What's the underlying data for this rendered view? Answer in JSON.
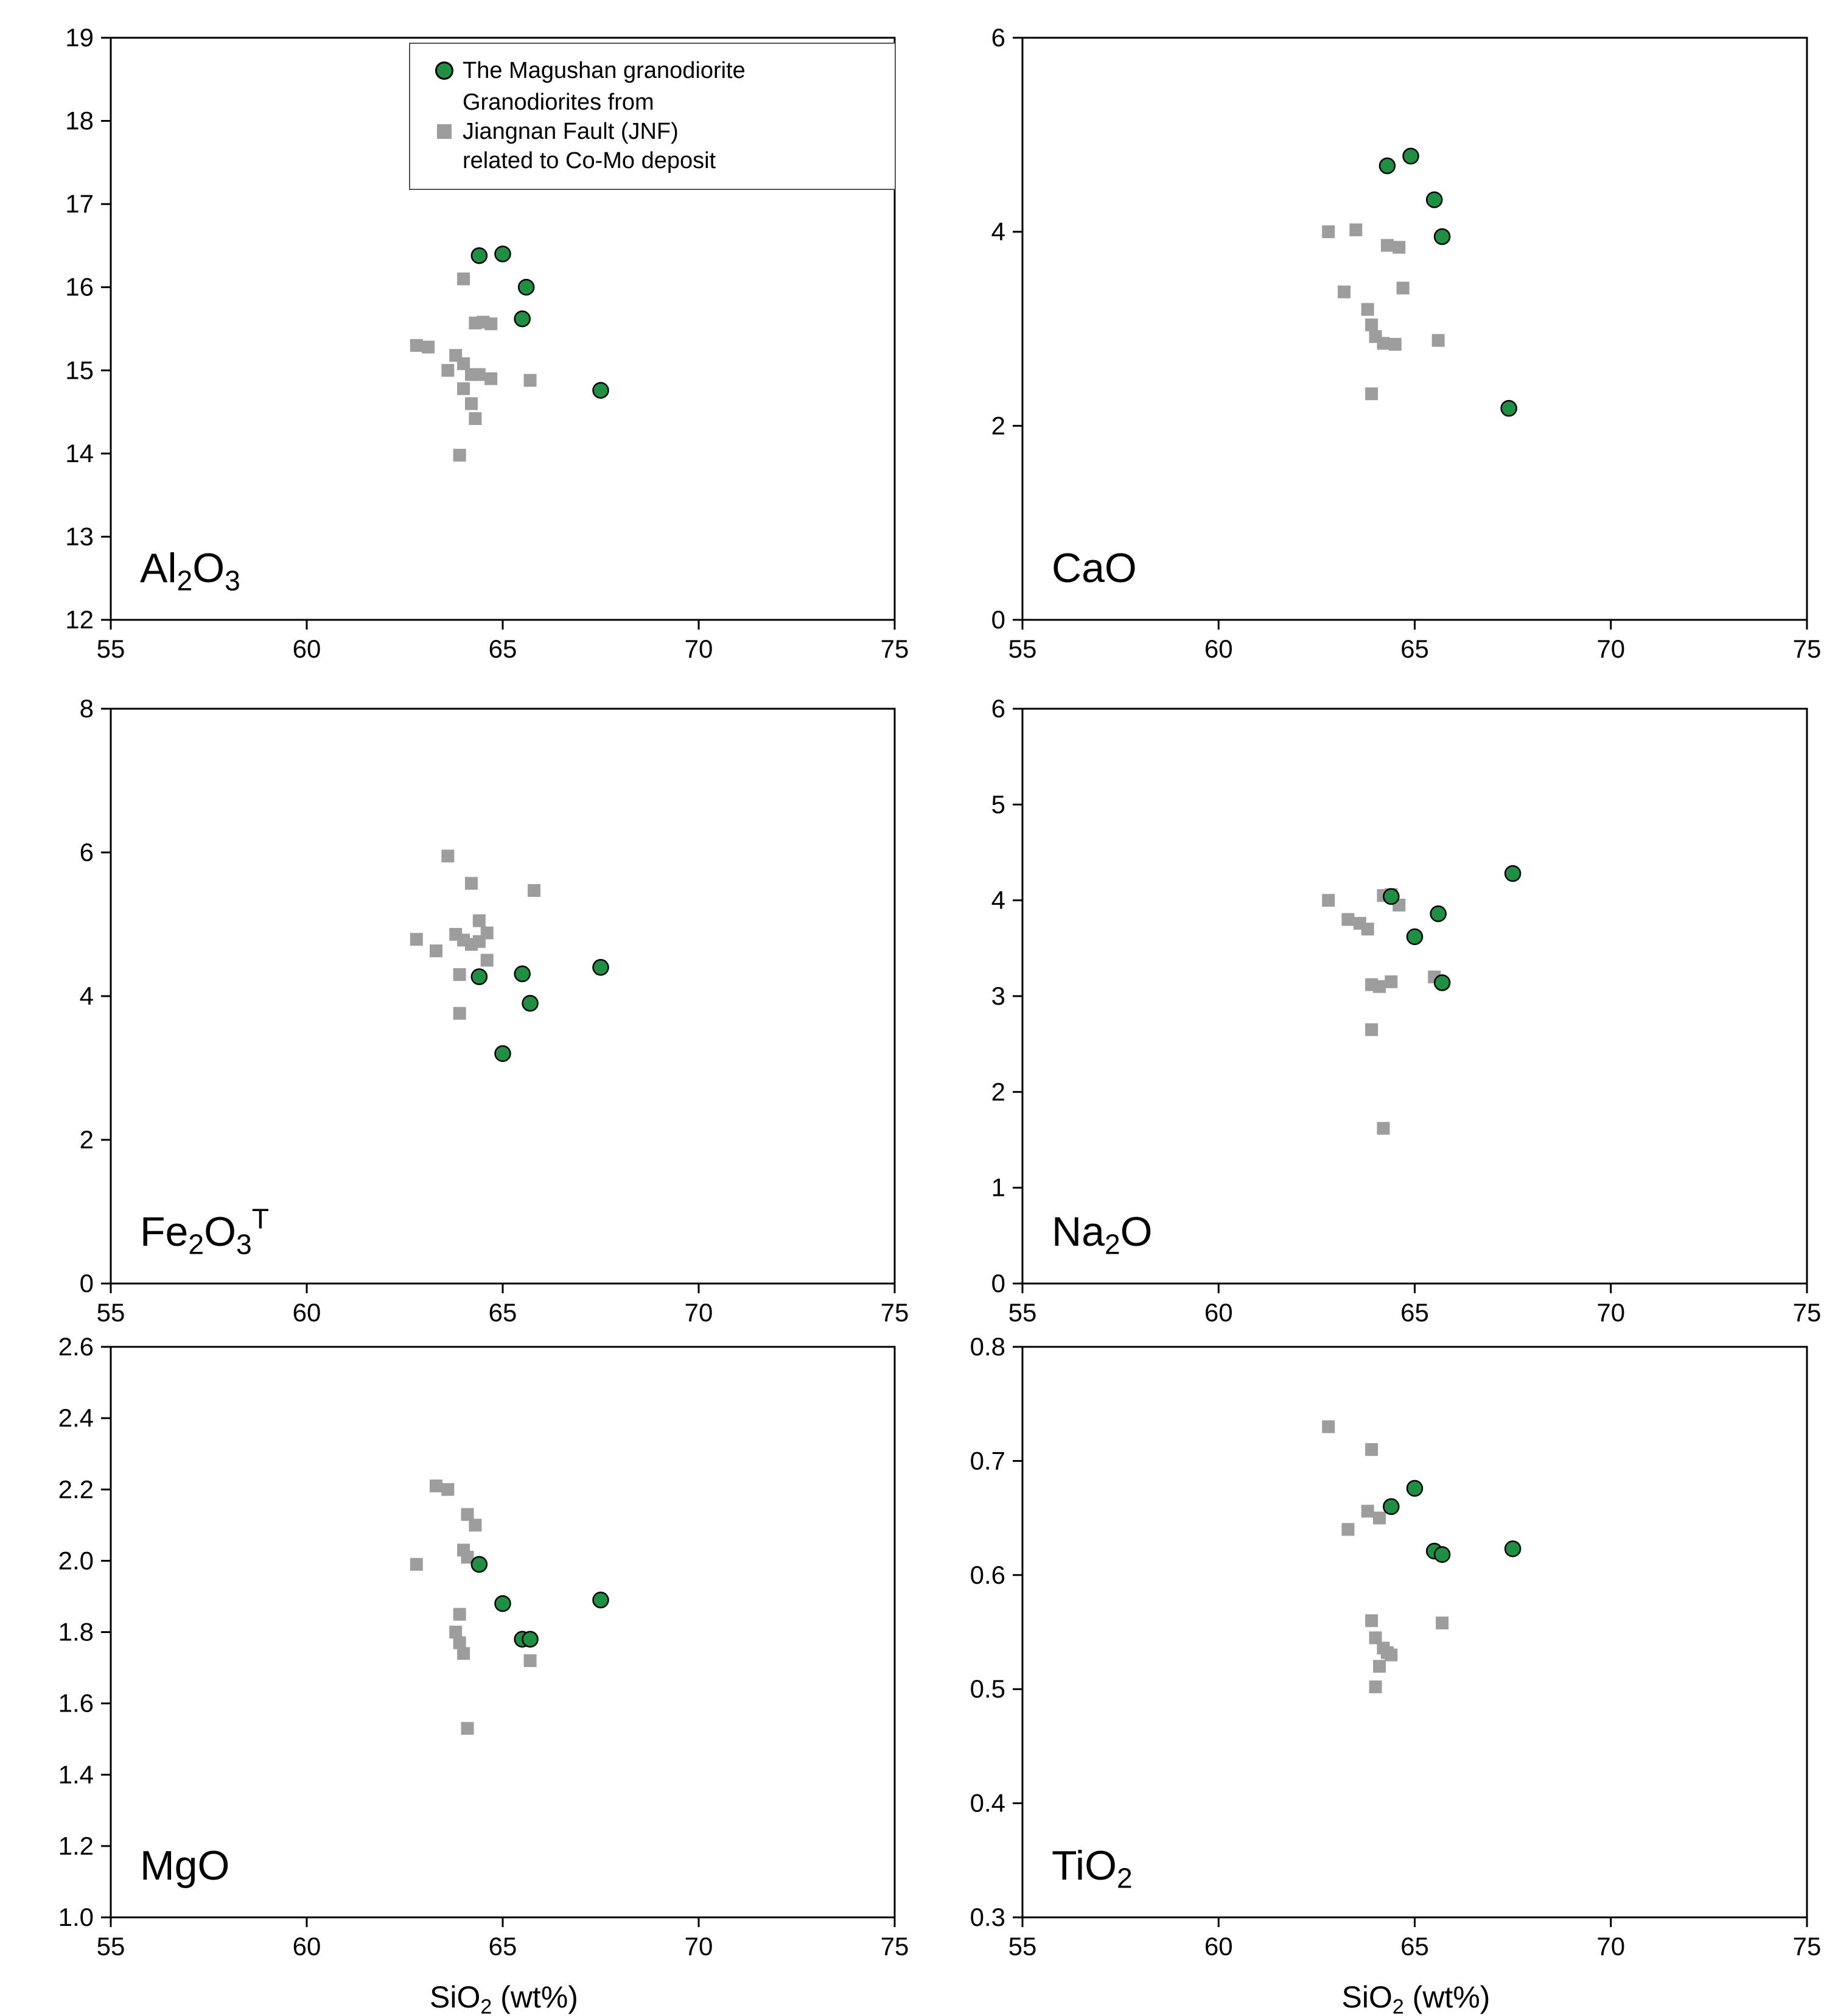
{
  "figure": {
    "xlabel_parts": [
      {
        "t": "SiO"
      },
      {
        "t": "2",
        "sub": true
      },
      {
        "t": " (wt%)"
      }
    ]
  },
  "colors": {
    "green": "#1e8f43",
    "gray": "#9d9d9d",
    "axis": "#000000"
  },
  "legend": {
    "items": [
      {
        "label": "The Magushan granodiorite",
        "marker": "circle",
        "color_key": "green"
      },
      {
        "label_lines": [
          "Granodiorites from",
          "Jiangnan Fault (JNF)",
          "related to Co-Mo deposit"
        ],
        "marker": "square",
        "color_key": "gray"
      }
    ]
  },
  "chart_data": [
    {
      "id": "al2o3",
      "type": "scatter",
      "label_parts": [
        {
          "t": "Al"
        },
        {
          "t": "2",
          "sub": true
        },
        {
          "t": "O"
        },
        {
          "t": "3",
          "sub": true
        }
      ],
      "xlim": [
        55,
        75
      ],
      "xticks": [
        55,
        60,
        65,
        70,
        75
      ],
      "ylim": [
        12,
        19
      ],
      "yticks": [
        12,
        13,
        14,
        15,
        16,
        17,
        18,
        19
      ],
      "show_xlabel": false,
      "series": [
        {
          "name": "The Magushan granodiorite",
          "marker": "circle",
          "color_key": "green",
          "points": [
            [
              64.4,
              16.38
            ],
            [
              65.0,
              16.4
            ],
            [
              65.6,
              16.0
            ],
            [
              65.5,
              15.62
            ],
            [
              67.5,
              14.76
            ]
          ]
        },
        {
          "name": "Granodiorites from Jiangnan Fault (JNF) related to Co-Mo deposit",
          "marker": "square",
          "color_key": "gray",
          "points": [
            [
              64.0,
              16.1
            ],
            [
              64.3,
              15.57
            ],
            [
              64.5,
              15.58
            ],
            [
              64.7,
              15.56
            ],
            [
              62.8,
              15.3
            ],
            [
              63.1,
              15.28
            ],
            [
              63.8,
              15.18
            ],
            [
              64.0,
              15.08
            ],
            [
              63.6,
              15.0
            ],
            [
              64.2,
              14.95
            ],
            [
              64.4,
              14.95
            ],
            [
              64.7,
              14.9
            ],
            [
              65.7,
              14.88
            ],
            [
              64.0,
              14.78
            ],
            [
              64.2,
              14.6
            ],
            [
              64.3,
              14.42
            ],
            [
              63.9,
              13.98
            ]
          ]
        }
      ]
    },
    {
      "id": "cao",
      "type": "scatter",
      "label_parts": [
        {
          "t": "CaO"
        }
      ],
      "xlim": [
        55,
        75
      ],
      "xticks": [
        55,
        60,
        65,
        70,
        75
      ],
      "ylim": [
        0,
        6
      ],
      "yticks": [
        0,
        2,
        4,
        6
      ],
      "show_xlabel": false,
      "series": [
        {
          "name": "The Magushan granodiorite",
          "marker": "circle",
          "color_key": "green",
          "points": [
            [
              64.3,
              4.68
            ],
            [
              64.9,
              4.78
            ],
            [
              65.5,
              4.33
            ],
            [
              65.7,
              3.95
            ],
            [
              67.4,
              2.18
            ]
          ]
        },
        {
          "name": "Granodiorites from Jiangnan Fault (JNF) related to Co-Mo deposit",
          "marker": "square",
          "color_key": "gray",
          "points": [
            [
              62.8,
              4.0
            ],
            [
              63.5,
              4.02
            ],
            [
              64.3,
              3.86
            ],
            [
              64.6,
              3.84
            ],
            [
              63.2,
              3.38
            ],
            [
              64.7,
              3.42
            ],
            [
              63.8,
              3.2
            ],
            [
              63.9,
              3.04
            ],
            [
              64.0,
              2.92
            ],
            [
              64.2,
              2.85
            ],
            [
              64.5,
              2.84
            ],
            [
              65.6,
              2.88
            ],
            [
              63.9,
              2.33
            ]
          ]
        }
      ]
    },
    {
      "id": "fe2o3t",
      "type": "scatter",
      "label_parts": [
        {
          "t": "Fe"
        },
        {
          "t": "2",
          "sub": true
        },
        {
          "t": "O"
        },
        {
          "t": "3",
          "sub": true
        },
        {
          "t": "T",
          "sup": true
        }
      ],
      "xlim": [
        55,
        75
      ],
      "xticks": [
        55,
        60,
        65,
        70,
        75
      ],
      "ylim": [
        0,
        8
      ],
      "yticks": [
        0,
        2,
        4,
        6,
        8
      ],
      "show_xlabel": false,
      "series": [
        {
          "name": "The Magushan granodiorite",
          "marker": "circle",
          "color_key": "green",
          "points": [
            [
              64.4,
              4.27
            ],
            [
              65.5,
              4.31
            ],
            [
              65.7,
              3.9
            ],
            [
              65.0,
              3.2
            ],
            [
              67.5,
              4.4
            ]
          ]
        },
        {
          "name": "Granodiorites from Jiangnan Fault (JNF) related to Co-Mo deposit",
          "marker": "square",
          "color_key": "gray",
          "points": [
            [
              63.6,
              5.95
            ],
            [
              64.2,
              5.57
            ],
            [
              65.8,
              5.47
            ],
            [
              64.4,
              5.05
            ],
            [
              62.8,
              4.79
            ],
            [
              63.3,
              4.63
            ],
            [
              63.8,
              4.86
            ],
            [
              64.0,
              4.78
            ],
            [
              64.2,
              4.72
            ],
            [
              64.4,
              4.76
            ],
            [
              64.6,
              4.88
            ],
            [
              64.6,
              4.5
            ],
            [
              63.9,
              4.3
            ],
            [
              63.9,
              3.76
            ]
          ]
        }
      ]
    },
    {
      "id": "na2o",
      "type": "scatter",
      "label_parts": [
        {
          "t": "Na"
        },
        {
          "t": "2",
          "sub": true
        },
        {
          "t": "O"
        }
      ],
      "xlim": [
        55,
        75
      ],
      "xticks": [
        55,
        60,
        65,
        70,
        75
      ],
      "ylim": [
        0,
        6
      ],
      "yticks": [
        0,
        1,
        2,
        3,
        4,
        5,
        6
      ],
      "show_xlabel": false,
      "series": [
        {
          "name": "The Magushan granodiorite",
          "marker": "circle",
          "color_key": "green",
          "points": [
            [
              64.4,
              4.04
            ],
            [
              65.0,
              3.62
            ],
            [
              65.6,
              3.86
            ],
            [
              65.7,
              3.14
            ],
            [
              67.5,
              4.28
            ]
          ]
        },
        {
          "name": "Granodiorites from Jiangnan Fault (JNF) related to Co-Mo deposit",
          "marker": "square",
          "color_key": "gray",
          "points": [
            [
              62.8,
              4.0
            ],
            [
              63.3,
              3.8
            ],
            [
              63.6,
              3.76
            ],
            [
              63.8,
              3.7
            ],
            [
              64.2,
              4.05
            ],
            [
              64.4,
              4.06
            ],
            [
              64.6,
              3.95
            ],
            [
              63.9,
              3.12
            ],
            [
              64.1,
              3.1
            ],
            [
              64.4,
              3.15
            ],
            [
              65.5,
              3.2
            ],
            [
              63.9,
              2.65
            ],
            [
              64.2,
              1.62
            ]
          ]
        }
      ]
    },
    {
      "id": "mgo",
      "type": "scatter",
      "label_parts": [
        {
          "t": "MgO"
        }
      ],
      "xlim": [
        55,
        75
      ],
      "xticks": [
        55,
        60,
        65,
        70,
        75
      ],
      "ylim": [
        1.0,
        2.6
      ],
      "yticks": [
        1.0,
        1.2,
        1.4,
        1.6,
        1.8,
        2.0,
        2.2,
        2.4,
        2.6
      ],
      "ytick_labels": [
        "1.0",
        "1.2",
        "1.4",
        "1.6",
        "1.8",
        "2.0",
        "2.2",
        "2.4",
        "2.6"
      ],
      "show_xlabel": true,
      "series": [
        {
          "name": "The Magushan granodiorite",
          "marker": "circle",
          "color_key": "green",
          "points": [
            [
              64.4,
              1.99
            ],
            [
              65.0,
              1.88
            ],
            [
              65.5,
              1.78
            ],
            [
              65.7,
              1.78
            ],
            [
              67.5,
              1.89
            ]
          ]
        },
        {
          "name": "Granodiorites from Jiangnan Fault (JNF) related to Co-Mo deposit",
          "marker": "square",
          "color_key": "gray",
          "points": [
            [
              63.3,
              2.21
            ],
            [
              63.6,
              2.2
            ],
            [
              64.1,
              2.13
            ],
            [
              64.3,
              2.1
            ],
            [
              64.0,
              2.03
            ],
            [
              64.1,
              2.01
            ],
            [
              62.8,
              1.99
            ],
            [
              63.9,
              1.85
            ],
            [
              63.8,
              1.8
            ],
            [
              63.9,
              1.77
            ],
            [
              64.0,
              1.74
            ],
            [
              65.7,
              1.72
            ],
            [
              64.1,
              1.53
            ]
          ]
        }
      ]
    },
    {
      "id": "tio2",
      "type": "scatter",
      "label_parts": [
        {
          "t": "TiO"
        },
        {
          "t": "2",
          "sub": true
        }
      ],
      "xlim": [
        55,
        75
      ],
      "xticks": [
        55,
        60,
        65,
        70,
        75
      ],
      "ylim": [
        0.3,
        0.8
      ],
      "yticks": [
        0.3,
        0.4,
        0.5,
        0.6,
        0.7,
        0.8
      ],
      "ytick_labels": [
        "0.3",
        "0.4",
        "0.5",
        "0.6",
        "0.7",
        "0.8"
      ],
      "show_xlabel": true,
      "series": [
        {
          "name": "The Magushan granodiorite",
          "marker": "circle",
          "color_key": "green",
          "points": [
            [
              64.4,
              0.66
            ],
            [
              65.0,
              0.676
            ],
            [
              65.5,
              0.621
            ],
            [
              65.7,
              0.618
            ],
            [
              67.5,
              0.623
            ]
          ]
        },
        {
          "name": "Granodiorites from Jiangnan Fault (JNF) related to Co-Mo deposit",
          "marker": "square",
          "color_key": "gray",
          "points": [
            [
              62.8,
              0.73
            ],
            [
              63.9,
              0.71
            ],
            [
              63.3,
              0.64
            ],
            [
              63.8,
              0.656
            ],
            [
              64.1,
              0.65
            ],
            [
              63.9,
              0.56
            ],
            [
              65.7,
              0.558
            ],
            [
              64.0,
              0.545
            ],
            [
              64.2,
              0.536
            ],
            [
              64.4,
              0.53
            ],
            [
              64.3,
              0.532
            ],
            [
              64.1,
              0.52
            ],
            [
              64.0,
              0.502
            ]
          ]
        }
      ]
    }
  ]
}
